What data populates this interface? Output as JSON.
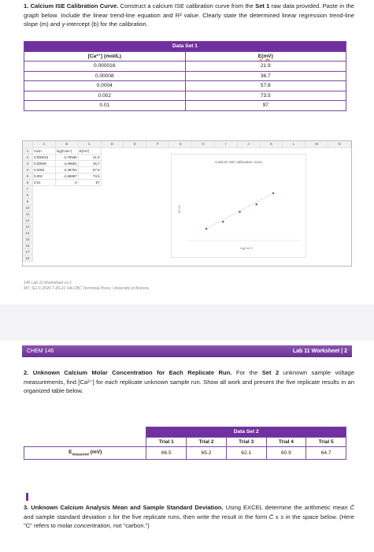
{
  "q1": [
    "1. Calcium ISE Calibration Curve.",
    " Construct a calcium ISE calibration curve from the ",
    "Set 1",
    " raw data provided. Paste in the graph below. Include the linear trend-line equation and R² value. Clearly state the determined linear regression trend-line slope (m) and y-intercept (b) for the calibration."
  ],
  "table1": {
    "title": "Data Set 1",
    "headers": [
      "[Ca²⁺] (mol/L)",
      "E(mV)"
    ],
    "rows": [
      [
        "0.000016",
        "21.9"
      ],
      [
        "0.00008",
        "36.7"
      ],
      [
        "0.0004",
        "57.8"
      ],
      [
        "0.002",
        "73.5"
      ],
      [
        "0.01",
        "97"
      ]
    ]
  },
  "spreadsheet": {
    "columns": [
      "A",
      "B",
      "C",
      "D",
      "E",
      "F",
      "G",
      "H",
      "I",
      "J",
      "K",
      "L",
      "M",
      "N"
    ],
    "row_numbers": [
      1,
      2,
      3,
      4,
      5,
      6,
      7,
      8,
      9,
      10,
      11,
      12,
      13,
      14,
      15,
      16,
      17,
      18
    ],
    "header": [
      "Ca2+",
      "log(Ca2+)",
      "E(mV)"
    ],
    "rows": [
      [
        1.6e-05,
        -4.79588,
        21.9
      ],
      [
        8e-05,
        -4.09691,
        36.7
      ],
      [
        0.0004,
        -3.39794,
        57.8
      ],
      [
        0.002,
        -2.69897,
        73.5
      ],
      [
        0.01,
        -2,
        97
      ]
    ],
    "chart": {
      "title": "Calcium ISE calibration curve",
      "x_label": "log[Ca2+]",
      "y_label": "E(mV)"
    }
  },
  "footer": [
    "146 Lab 11 Worksheet v1.2",
    "MY, SG © 2020 7-26-21 UA-CBC Technical Press, University of Arizona"
  ],
  "header2": {
    "left": "CHEM 146",
    "right": "Lab 11 Worksheet | 2"
  },
  "q2": [
    "2. Unknown Calcium Molar Concentration for Each Replicate Run.",
    " For the ",
    "Set 2",
    " unknown sample voltage measurements, find [Ca²⁺] for ",
    "each",
    " replicate unknown sample run. Show all work and present the five replicate results in an organized table below."
  ],
  "table2": {
    "title": "Data Set 2",
    "trials": [
      "Trial 1",
      "Trial 2",
      "Trial 3",
      "Trial 4",
      "Trial 5"
    ],
    "row_label": {
      "symbol": "E",
      "subscript": "measured",
      "unit": " (mV)"
    },
    "values": [
      "66.5",
      "65.2",
      "62.1",
      "60.9",
      "64.7"
    ]
  },
  "q3": [
    "3. Unknown Calcium Analysis Mean and Sample Standard Deviation.",
    " Using EXCEL determine the arithmetic mean ",
    "C̄",
    " and sample standard deviation ",
    "s",
    " for the five replicate runs, then write the result in the form ",
    "C̄ ± s",
    " in the space below. (Here \"C\" refers to molar ",
    "concentration",
    ", not \"carbon.\")"
  ]
}
